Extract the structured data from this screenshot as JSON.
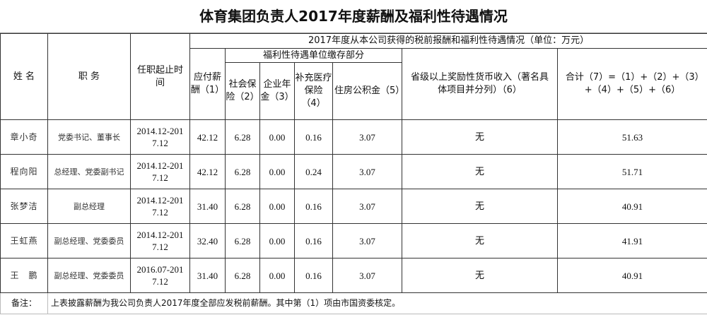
{
  "title": "体育集团负责人2017年度薪酬及福利性待遇情况",
  "headers": {
    "name": "姓 名",
    "position": "职 务",
    "term": "任职起止时间",
    "group": "2017年度从本公司获得的税前报酬和福利性待遇情况（单位：万元）",
    "salary": "应付薪酬（1）",
    "welfare_group": "福利性待遇单位缴存部分",
    "social": "社会保险（2）",
    "annuity": "企业年金（3）",
    "medical": "补充医疗保险（4）",
    "housing": "住房公积金（5）",
    "bonus": "省级以上奖励性货币收入（著名具体项目并分列）（6）",
    "total": "合计（7）=（1）+（2）+（3）+（4）+（5）+（6）"
  },
  "rows": [
    {
      "name": "章小奇",
      "position": "党委书记、董事长",
      "term": "2014.12-2017.12",
      "salary": "42.12",
      "social": "6.28",
      "annuity": "0.00",
      "medical": "0.16",
      "housing": "3.07",
      "bonus": "无",
      "total": "51.63"
    },
    {
      "name": "程向阳",
      "position": "总经理、党委副书记",
      "term": "2014.12-2017.12",
      "salary": "42.12",
      "social": "6.28",
      "annuity": "0.00",
      "medical": "0.24",
      "housing": "3.07",
      "bonus": "无",
      "total": "51.71"
    },
    {
      "name": "张梦洁",
      "position": "副总经理",
      "term": "2014.12-2017.12",
      "salary": "31.40",
      "social": "6.28",
      "annuity": "0.00",
      "medical": "0.16",
      "housing": "3.07",
      "bonus": "无",
      "total": "40.91"
    },
    {
      "name": "王虹燕",
      "position": "副总经理、党委委员",
      "term": "2014.12-2017.12",
      "salary": "32.40",
      "social": "6.28",
      "annuity": "0.00",
      "medical": "0.16",
      "housing": "3.07",
      "bonus": "无",
      "total": "41.91"
    },
    {
      "name": "王　鹏",
      "position": "副总经理、党委委员",
      "term": "2016.07-2017.12",
      "salary": "31.40",
      "social": "6.28",
      "annuity": "0.00",
      "medical": "0.16",
      "housing": "3.07",
      "bonus": "无",
      "total": "40.91"
    }
  ],
  "footer": {
    "label": "备注：",
    "text": "上表披露薪酬为我公司负责人2017年度全部应发税前薪酬。其中第（1）项由市国资委核定。"
  }
}
